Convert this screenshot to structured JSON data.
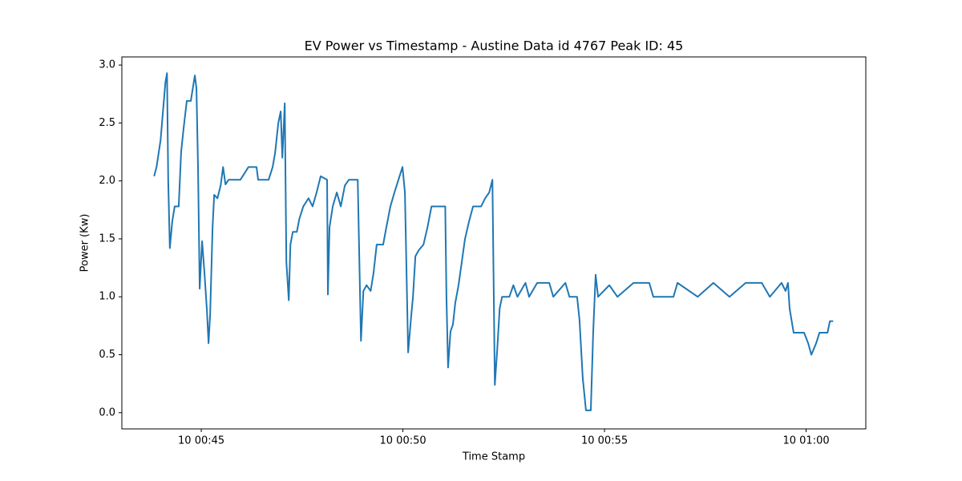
{
  "chart_data": {
    "type": "line",
    "title": "EV Power vs Timestamp - Austine Data id 4767 Peak ID: 45",
    "x_label": "Time Stamp",
    "y_label": "Power (Kw)",
    "x": [
      43.83,
      43.89,
      43.99,
      44.05,
      44.11,
      44.15,
      44.18,
      44.22,
      44.28,
      44.34,
      44.44,
      44.5,
      44.56,
      44.64,
      44.74,
      44.84,
      44.88,
      44.92,
      44.96,
      45.02,
      45.08,
      45.14,
      45.18,
      45.22,
      45.28,
      45.32,
      45.4,
      45.48,
      45.54,
      45.6,
      45.68,
      45.97,
      46.17,
      46.37,
      46.41,
      46.67,
      46.77,
      46.83,
      46.91,
      46.97,
      47.01,
      47.07,
      47.11,
      47.17,
      47.21,
      47.27,
      47.37,
      47.43,
      47.53,
      47.66,
      47.76,
      47.86,
      47.96,
      48.12,
      48.14,
      48.18,
      48.26,
      48.36,
      48.46,
      48.56,
      48.66,
      48.88,
      48.96,
      49.02,
      49.1,
      49.2,
      49.27,
      49.35,
      49.51,
      49.59,
      49.69,
      49.79,
      49.89,
      49.99,
      50.05,
      50.13,
      50.21,
      50.25,
      50.31,
      50.39,
      50.51,
      50.61,
      50.71,
      50.99,
      51.05,
      51.08,
      51.12,
      51.18,
      51.24,
      51.3,
      51.38,
      51.46,
      51.54,
      51.64,
      51.74,
      51.94,
      52.04,
      52.14,
      52.22,
      52.28,
      52.34,
      52.4,
      52.46,
      52.64,
      52.74,
      52.84,
      53.04,
      53.13,
      53.33,
      53.63,
      53.73,
      54.03,
      54.13,
      54.32,
      54.38,
      54.46,
      54.54,
      54.66,
      54.72,
      54.78,
      54.84,
      55.12,
      55.32,
      55.72,
      56.11,
      56.21,
      56.71,
      56.81,
      57.31,
      57.7,
      58.1,
      58.5,
      58.9,
      59.1,
      59.39,
      59.49,
      59.55,
      59.59,
      59.69,
      59.95,
      60.05,
      60.13,
      60.25,
      60.33,
      60.53,
      60.59,
      60.67
    ],
    "series": [
      {
        "name": "Power",
        "color": "#1f77b4",
        "values": [
          2.04,
          2.12,
          2.35,
          2.6,
          2.85,
          2.93,
          2.0,
          1.42,
          1.65,
          1.78,
          1.78,
          2.25,
          2.45,
          2.69,
          2.69,
          2.91,
          2.8,
          2.1,
          1.07,
          1.48,
          1.2,
          0.88,
          0.6,
          0.85,
          1.6,
          1.88,
          1.85,
          1.96,
          2.12,
          1.97,
          2.01,
          2.01,
          2.12,
          2.12,
          2.01,
          2.01,
          2.12,
          2.24,
          2.5,
          2.6,
          2.2,
          2.67,
          1.3,
          0.97,
          1.45,
          1.56,
          1.56,
          1.67,
          1.78,
          1.85,
          1.78,
          1.9,
          2.04,
          2.01,
          1.02,
          1.6,
          1.78,
          1.9,
          1.78,
          1.96,
          2.01,
          2.01,
          0.62,
          1.05,
          1.1,
          1.05,
          1.2,
          1.45,
          1.45,
          1.6,
          1.78,
          1.9,
          2.01,
          2.12,
          1.9,
          0.52,
          0.85,
          1.0,
          1.35,
          1.4,
          1.45,
          1.6,
          1.78,
          1.78,
          1.78,
          1.0,
          0.39,
          0.7,
          0.76,
          0.95,
          1.1,
          1.3,
          1.5,
          1.65,
          1.78,
          1.78,
          1.85,
          1.9,
          2.01,
          0.24,
          0.55,
          0.9,
          1.0,
          1.0,
          1.1,
          1.0,
          1.12,
          1.0,
          1.12,
          1.12,
          1.0,
          1.12,
          1.0,
          1.0,
          0.8,
          0.3,
          0.02,
          0.02,
          0.7,
          1.19,
          1.0,
          1.1,
          1.0,
          1.12,
          1.12,
          1.0,
          1.0,
          1.12,
          1.0,
          1.12,
          1.0,
          1.12,
          1.12,
          1.0,
          1.12,
          1.05,
          1.12,
          0.9,
          0.69,
          0.69,
          0.6,
          0.5,
          0.6,
          0.69,
          0.69,
          0.79,
          0.79
        ]
      }
    ],
    "xlim": [
      43.03,
      61.48
    ],
    "ylim": [
      -0.14,
      3.07
    ],
    "xticks": [
      {
        "value": 45,
        "label": "10 00:45"
      },
      {
        "value": 50,
        "label": "10 00:50"
      },
      {
        "value": 55,
        "label": "10 00:55"
      },
      {
        "value": 60,
        "label": "10 01:00"
      }
    ],
    "yticks": [
      {
        "value": 0,
        "label": "0.0"
      },
      {
        "value": 0.5,
        "label": "0.5"
      },
      {
        "value": 1,
        "label": "1.0"
      },
      {
        "value": 1.5,
        "label": "1.5"
      },
      {
        "value": 2,
        "label": "2.0"
      },
      {
        "value": 2.5,
        "label": "2.5"
      },
      {
        "value": 3,
        "label": "3.0"
      }
    ],
    "grid": false
  }
}
